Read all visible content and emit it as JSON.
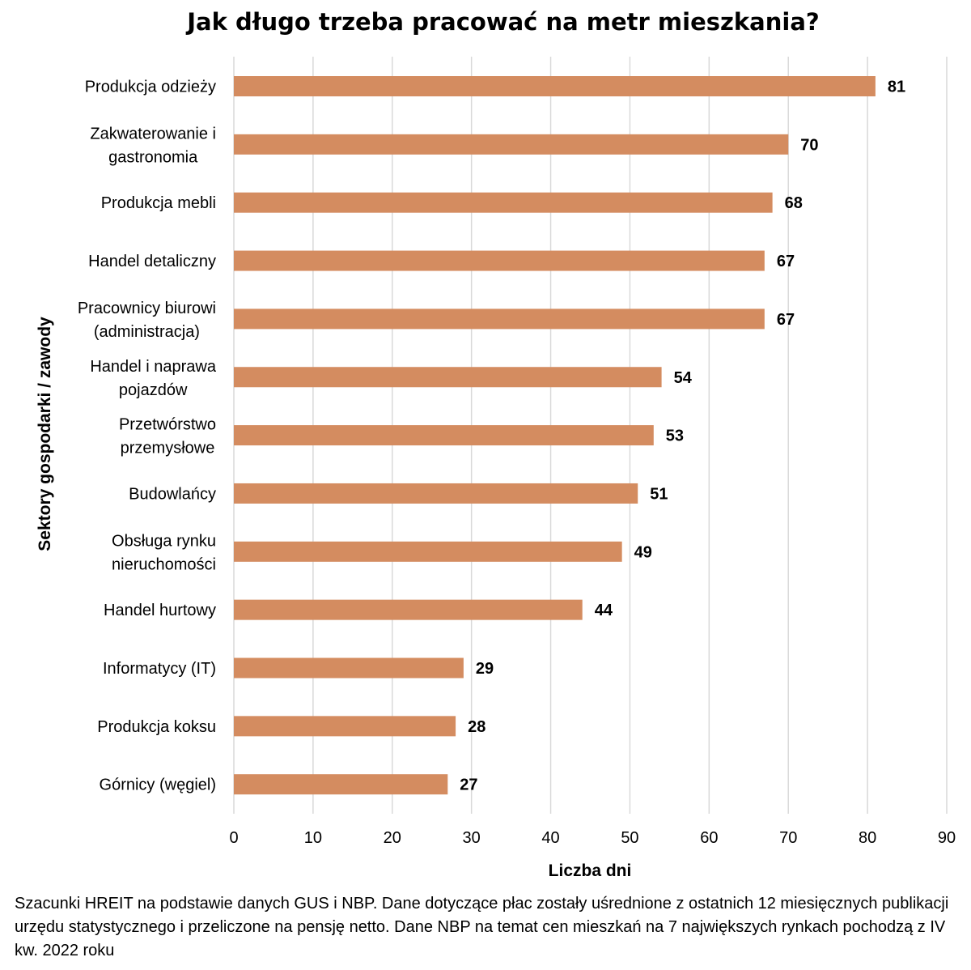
{
  "chart_data": {
    "type": "bar",
    "orientation": "horizontal",
    "title": "Jak długo trzeba pracować na metr mieszkania?",
    "xlabel": "Liczba dni",
    "ylabel": "Sektory gospodarki / zawody",
    "xlim": [
      0,
      90
    ],
    "xticks": [
      0,
      10,
      20,
      30,
      40,
      50,
      60,
      70,
      80,
      90
    ],
    "grid": "vertical",
    "bar_color": "#D48C60",
    "categories": [
      [
        "Produkcja odzieży"
      ],
      [
        "Zakwaterowanie i",
        "gastronomia"
      ],
      [
        "Produkcja mebli"
      ],
      [
        "Handel detaliczny"
      ],
      [
        "Pracownicy biurowi",
        "(administracja)"
      ],
      [
        "Handel i naprawa",
        "pojazdów"
      ],
      [
        "Przetwórstwo",
        "przemysłowe"
      ],
      [
        "Budowlańcy"
      ],
      [
        "Obsługa rynku",
        "nieruchomości"
      ],
      [
        "Handel hurtowy"
      ],
      [
        "Informatycy (IT)"
      ],
      [
        "Produkcja koksu"
      ],
      [
        "Górnicy (węgiel)"
      ]
    ],
    "values": [
      81,
      70,
      68,
      67,
      67,
      54,
      53,
      51,
      49,
      44,
      29,
      28,
      27
    ],
    "data_labels": [
      "81",
      "70",
      "68",
      "67",
      "67",
      "54",
      "53",
      "51",
      "49",
      "44",
      "29",
      "28",
      "27"
    ]
  },
  "footnote": "Szacunki HREIT na podstawie danych GUS i NBP. Dane dotyczące płac zostały uśrednione z ostatnich 12 miesięcznych publikacji urzędu statystycznego i przeliczone na pensję netto. Dane NBP na temat cen mieszkań na 7 największych rynkach pochodzą z IV kw. 2022 roku"
}
